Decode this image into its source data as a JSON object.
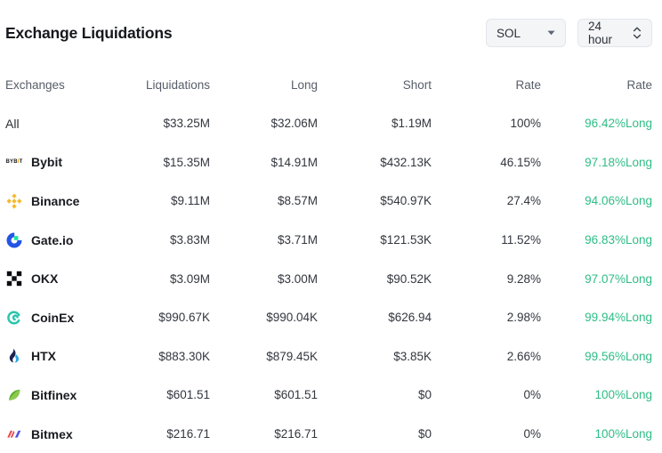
{
  "header": {
    "title": "Exchange Liquidations",
    "symbol_select": {
      "value": "SOL"
    },
    "period_select": {
      "value": "24 hour"
    }
  },
  "colors": {
    "long_green": "#2EBD85",
    "select_bg": "#F3F5F7",
    "select_border": "#E2E6EB"
  },
  "brand_colors": {
    "bybit_accent": "#F7A600",
    "binance_yellow": "#F3BA2F",
    "gateio_blue": "#2354E6",
    "gateio_green": "#17E6A1",
    "okx_black": "#0A0D12",
    "coinex_teal": "#2BC5AE",
    "htx_navy": "#1B2550",
    "htx_blue": "#2CA7E4",
    "bitfinex_light_green": "#8BC84E",
    "bitfinex_dark_green": "#4AA32E",
    "bitmex_red": "#E84A4D",
    "bitmex_blue": "#5157DB"
  },
  "table": {
    "columns": [
      "Exchanges",
      "Liquidations",
      "Long",
      "Short",
      "Rate",
      "Rate"
    ],
    "rows": [
      {
        "exchange": "All",
        "icon": "none",
        "liquidations": "$33.25M",
        "long": "$32.06M",
        "short": "$1.19M",
        "rate": "100%",
        "long_rate": "96.42%Long"
      },
      {
        "exchange": "Bybit",
        "icon": "bybit",
        "liquidations": "$15.35M",
        "long": "$14.91M",
        "short": "$432.13K",
        "rate": "46.15%",
        "long_rate": "97.18%Long"
      },
      {
        "exchange": "Binance",
        "icon": "binance",
        "liquidations": "$9.11M",
        "long": "$8.57M",
        "short": "$540.97K",
        "rate": "27.4%",
        "long_rate": "94.06%Long"
      },
      {
        "exchange": "Gate.io",
        "icon": "gateio",
        "liquidations": "$3.83M",
        "long": "$3.71M",
        "short": "$121.53K",
        "rate": "11.52%",
        "long_rate": "96.83%Long"
      },
      {
        "exchange": "OKX",
        "icon": "okx",
        "liquidations": "$3.09M",
        "long": "$3.00M",
        "short": "$90.52K",
        "rate": "9.28%",
        "long_rate": "97.07%Long"
      },
      {
        "exchange": "CoinEx",
        "icon": "coinex",
        "liquidations": "$990.67K",
        "long": "$990.04K",
        "short": "$626.94",
        "rate": "2.98%",
        "long_rate": "99.94%Long"
      },
      {
        "exchange": "HTX",
        "icon": "htx",
        "liquidations": "$883.30K",
        "long": "$879.45K",
        "short": "$3.85K",
        "rate": "2.66%",
        "long_rate": "99.56%Long"
      },
      {
        "exchange": "Bitfinex",
        "icon": "bitfinex",
        "liquidations": "$601.51",
        "long": "$601.51",
        "short": "$0",
        "rate": "0%",
        "long_rate": "100%Long"
      },
      {
        "exchange": "Bitmex",
        "icon": "bitmex",
        "liquidations": "$216.71",
        "long": "$216.71",
        "short": "$0",
        "rate": "0%",
        "long_rate": "100%Long"
      }
    ]
  }
}
